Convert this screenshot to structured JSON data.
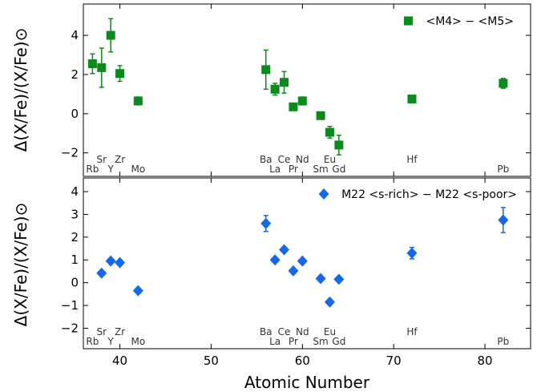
{
  "chart_data": [
    {
      "type": "scatter",
      "xlabel": "",
      "ylabel": "Δ(X/Fe)/(X/Fe)⊙",
      "xlim": [
        36,
        85
      ],
      "ylim": [
        -3.2,
        5.6
      ],
      "yticks": [
        -2,
        0,
        2,
        4
      ],
      "color": "#0b8a1e",
      "marker": "square",
      "legend": {
        "label": "<M4> − <M5>",
        "position": "top-right"
      },
      "points": [
        {
          "x": 37,
          "y": 2.55,
          "err": 0.5
        },
        {
          "x": 38,
          "y": 2.35,
          "err": 1.0
        },
        {
          "x": 39,
          "y": 4.0,
          "err": 0.85
        },
        {
          "x": 40,
          "y": 2.05,
          "err": 0.4
        },
        {
          "x": 42,
          "y": 0.65,
          "err": 0.2
        },
        {
          "x": 56,
          "y": 2.25,
          "err": 1.0
        },
        {
          "x": 57,
          "y": 1.25,
          "err": 0.3
        },
        {
          "x": 58,
          "y": 1.6,
          "err": 0.55
        },
        {
          "x": 59,
          "y": 0.35,
          "err": 0
        },
        {
          "x": 60,
          "y": 0.65,
          "err": 0.2
        },
        {
          "x": 62,
          "y": -0.1,
          "err": 0
        },
        {
          "x": 63,
          "y": -0.95,
          "err": 0.3
        },
        {
          "x": 64,
          "y": -1.6,
          "err": 0.5
        },
        {
          "x": 72,
          "y": 0.75,
          "err": 0
        },
        {
          "x": 82,
          "y": 1.55,
          "err": 0.25
        }
      ],
      "elements_upper": [
        {
          "x": 38,
          "label": "Sr"
        },
        {
          "x": 40,
          "label": "Zr"
        },
        {
          "x": 56,
          "label": "Ba"
        },
        {
          "x": 58,
          "label": "Ce"
        },
        {
          "x": 60,
          "label": "Nd"
        },
        {
          "x": 63,
          "label": "Eu"
        },
        {
          "x": 72,
          "label": "Hf"
        }
      ],
      "elements_lower": [
        {
          "x": 37,
          "label": "Rb"
        },
        {
          "x": 39,
          "label": "Y"
        },
        {
          "x": 42,
          "label": "Mo"
        },
        {
          "x": 57,
          "label": "La"
        },
        {
          "x": 59,
          "label": "Pr"
        },
        {
          "x": 62,
          "label": "Sm"
        },
        {
          "x": 64,
          "label": "Gd"
        },
        {
          "x": 82,
          "label": "Pb"
        }
      ]
    },
    {
      "type": "scatter",
      "xlabel": "Atomic Number",
      "ylabel": "Δ(X/Fe)/(X/Fe)⊙",
      "xlim": [
        36,
        85
      ],
      "ylim": [
        -2.9,
        4.6
      ],
      "xticks": [
        40,
        50,
        60,
        70,
        80
      ],
      "yticks": [
        -2,
        -1,
        0,
        1,
        2,
        3,
        4
      ],
      "color": "#1569e8",
      "marker": "diamond",
      "legend": {
        "label": "M22 <s-rich> − M22 <s-poor>",
        "position": "top-right"
      },
      "points": [
        {
          "x": 38,
          "y": 0.42,
          "err": 0
        },
        {
          "x": 39,
          "y": 0.95,
          "err": 0
        },
        {
          "x": 40,
          "y": 0.88,
          "err": 0
        },
        {
          "x": 42,
          "y": -0.35,
          "err": 0
        },
        {
          "x": 56,
          "y": 2.6,
          "err": 0.35
        },
        {
          "x": 57,
          "y": 1.0,
          "err": 0
        },
        {
          "x": 58,
          "y": 1.45,
          "err": 0
        },
        {
          "x": 59,
          "y": 0.52,
          "err": 0
        },
        {
          "x": 60,
          "y": 0.95,
          "err": 0
        },
        {
          "x": 62,
          "y": 0.18,
          "err": 0
        },
        {
          "x": 63,
          "y": -0.85,
          "err": 0
        },
        {
          "x": 64,
          "y": 0.15,
          "err": 0
        },
        {
          "x": 72,
          "y": 1.3,
          "err": 0.25
        },
        {
          "x": 82,
          "y": 2.75,
          "err": 0.55
        }
      ],
      "elements_upper": [
        {
          "x": 38,
          "label": "Sr"
        },
        {
          "x": 40,
          "label": "Zr"
        },
        {
          "x": 56,
          "label": "Ba"
        },
        {
          "x": 58,
          "label": "Ce"
        },
        {
          "x": 60,
          "label": "Nd"
        },
        {
          "x": 63,
          "label": "Eu"
        },
        {
          "x": 72,
          "label": "Hf"
        }
      ],
      "elements_lower": [
        {
          "x": 37,
          "label": "Rb"
        },
        {
          "x": 39,
          "label": "Y"
        },
        {
          "x": 42,
          "label": "Mo"
        },
        {
          "x": 57,
          "label": "La"
        },
        {
          "x": 59,
          "label": "Pr"
        },
        {
          "x": 62,
          "label": "Sm"
        },
        {
          "x": 64,
          "label": "Gd"
        },
        {
          "x": 82,
          "label": "Pb"
        }
      ]
    }
  ]
}
